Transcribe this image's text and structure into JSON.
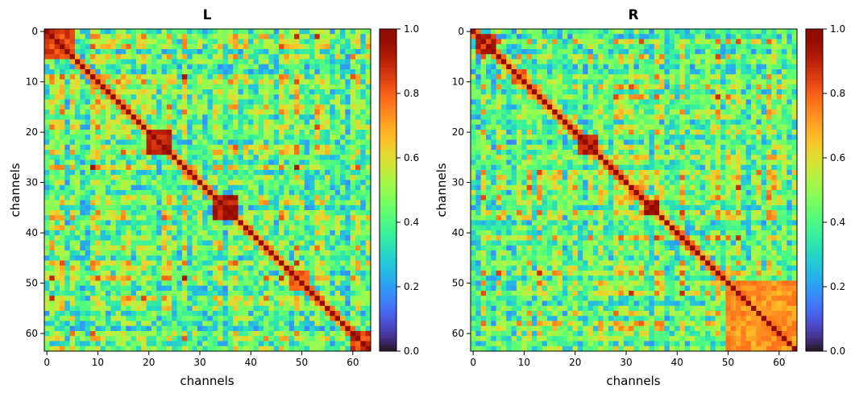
{
  "chart_data": [
    {
      "type": "heatmap",
      "title": "L",
      "xlabel": "channels",
      "ylabel": "channels",
      "size": 64,
      "xticks": [
        0,
        10,
        20,
        30,
        40,
        50,
        60
      ],
      "yticks": [
        0,
        10,
        20,
        30,
        40,
        50,
        60
      ],
      "colormap": "turbo",
      "vmin": 0.0,
      "vmax": 1.0,
      "colorbar_ticks": [
        "0.0",
        "0.2",
        "0.4",
        "0.6",
        "0.8",
        "1.0"
      ],
      "diagonal": 1.0,
      "blocks": [
        {
          "range": [
            0,
            5
          ],
          "value": 0.85
        },
        {
          "range": [
            20,
            24
          ],
          "value": 0.88
        },
        {
          "range": [
            33,
            37
          ],
          "value": 0.92
        },
        {
          "range": [
            48,
            51
          ],
          "value": 0.8
        },
        {
          "range": [
            60,
            63
          ],
          "value": 0.85
        }
      ],
      "background_mean": 0.45,
      "seed": 7
    },
    {
      "type": "heatmap",
      "title": "R",
      "xlabel": "channels",
      "ylabel": "channels",
      "size": 64,
      "xticks": [
        0,
        10,
        20,
        30,
        40,
        50,
        60
      ],
      "yticks": [
        0,
        10,
        20,
        30,
        40,
        50,
        60
      ],
      "colormap": "turbo",
      "vmin": 0.0,
      "vmax": 1.0,
      "colorbar_ticks": [
        "0.0",
        "0.2",
        "0.4",
        "0.6",
        "0.8",
        "1.0"
      ],
      "diagonal": 1.0,
      "blocks": [
        {
          "range": [
            1,
            4
          ],
          "value": 0.88
        },
        {
          "range": [
            8,
            10
          ],
          "value": 0.8
        },
        {
          "range": [
            21,
            24
          ],
          "value": 0.9
        },
        {
          "range": [
            34,
            36
          ],
          "value": 0.95
        },
        {
          "range": [
            50,
            63
          ],
          "value": 0.72
        }
      ],
      "background_mean": 0.45,
      "seed": 19
    }
  ]
}
